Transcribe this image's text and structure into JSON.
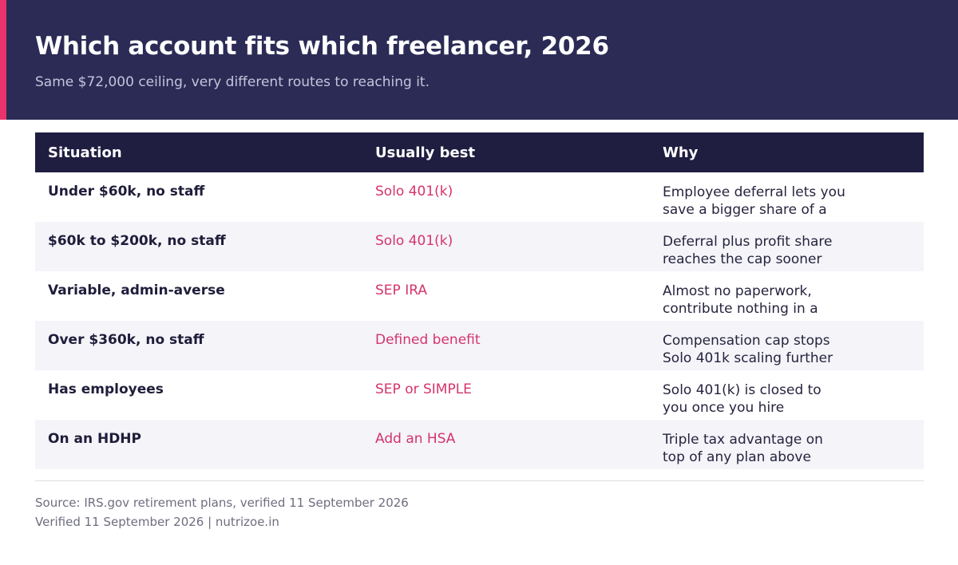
{
  "header": {
    "title": "Which account fits which freelancer, 2026",
    "subtitle": "Same $72,000 ceiling, very different routes to reaching it."
  },
  "table": {
    "columns": [
      "Situation",
      "Usually best",
      "Why"
    ],
    "rows": [
      {
        "situation": "Under $60k, no staff",
        "best": "Solo 401(k)",
        "why": "Employee deferral lets you save a bigger share of a"
      },
      {
        "situation": "$60k to $200k, no staff",
        "best": "Solo 401(k)",
        "why": "Deferral plus profit share reaches the cap sooner"
      },
      {
        "situation": "Variable, admin-averse",
        "best": "SEP IRA",
        "why": "Almost no paperwork, contribute nothing in a"
      },
      {
        "situation": "Over $360k, no staff",
        "best": "Defined benefit",
        "why": "Compensation cap stops Solo 401k scaling further"
      },
      {
        "situation": "Has employees",
        "best": "SEP or SIMPLE",
        "why": "Solo 401(k) is closed to you once you hire"
      },
      {
        "situation": "On an HDHP",
        "best": "Add an HSA",
        "why": "Triple tax advantage on top of any plan above"
      }
    ]
  },
  "footer": {
    "source": "Source: IRS.gov retirement plans, verified 11 September 2026",
    "verified": "Verified 11 September 2026  |  nutrizoe.in"
  },
  "colors": {
    "header_bg": "#2b2b56",
    "accent": "#e8336d",
    "table_header_bg": "#1f1d40",
    "highlight_text": "#d6336c",
    "alt_row_bg": "#f4f4f9"
  }
}
